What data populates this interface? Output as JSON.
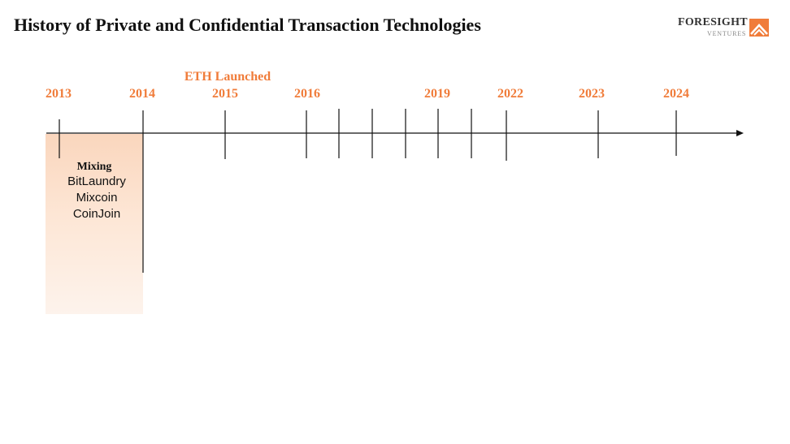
{
  "header": {
    "title": "History of Private and Confidential Transaction Technologies",
    "logo": {
      "name": "FORESIGHT",
      "sub": "VENTURES",
      "mark_color": "#f07c3a"
    }
  },
  "timeline": {
    "accent_color": "#f07c3a",
    "years": [
      "2013",
      "2014",
      "2015",
      "2016",
      "2019",
      "2022",
      "2023",
      "2024"
    ],
    "event_label": "ETH Launched"
  },
  "mixing": {
    "heading": "Mixing",
    "items": [
      "BitLaundry",
      "Mixcoin",
      "CoinJoin"
    ]
  }
}
